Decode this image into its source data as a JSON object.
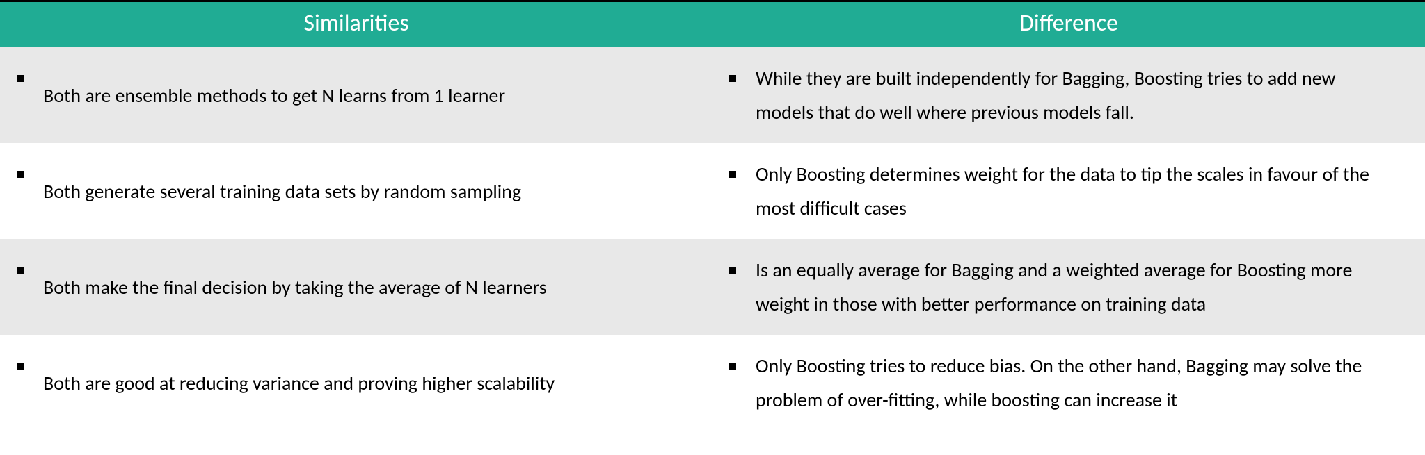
{
  "table": {
    "header_bg": "#20ac94",
    "header_color": "#ffffff",
    "row_alt_bg": "#e8e8e8",
    "row_bg": "#ffffff",
    "text_color": "#000000",
    "columns": [
      {
        "label": "Similarities"
      },
      {
        "label": "Difference"
      }
    ],
    "rows": [
      {
        "left": "Both are ensemble methods to get N learns from 1 learner",
        "right": "While they are built independently for Bagging, Boosting tries to add new models that do well where previous models fall."
      },
      {
        "left": "Both generate several training data sets by random sampling",
        "right": "Only Boosting determines weight for the data to tip the scales in favour of the most difficult cases"
      },
      {
        "left": "Both make the final decision by taking the average of N learners",
        "right": "Is an equally average for Bagging and a weighted average for Boosting more weight in those with better performance on training data"
      },
      {
        "left": "Both are good at reducing variance and proving higher scalability",
        "right": "Only Boosting tries to reduce bias. On the other hand, Bagging may solve the problem of over-fitting, while boosting can increase it"
      }
    ]
  }
}
